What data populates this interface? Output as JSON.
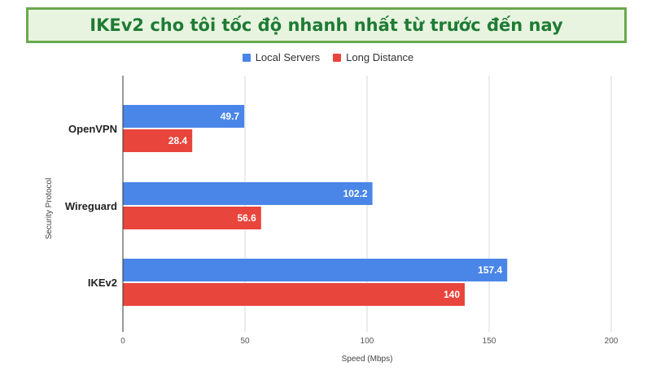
{
  "title": "IKEv2 cho tôi tốc độ nhanh nhất từ trước đến nay",
  "colors": {
    "title_text": "#1e7b35",
    "title_border": "#6aa84f",
    "title_bg": "#e8f4df",
    "local": "#4a86e8",
    "long": "#e8453c",
    "grid": "#d9d9d9",
    "axis": "#333333"
  },
  "chart_data": {
    "type": "bar",
    "orientation": "horizontal",
    "categories": [
      "OpenVPN",
      "Wireguard",
      "IKEv2"
    ],
    "series": [
      {
        "name": "Local Servers",
        "values": [
          49.7,
          102.2,
          157.4
        ]
      },
      {
        "name": "Long Distance",
        "values": [
          28.4,
          56.6,
          140
        ]
      }
    ],
    "data_labels": [
      [
        "49.7",
        "102.2",
        "157.4"
      ],
      [
        "28.4",
        "56.6",
        "140"
      ]
    ],
    "xlabel": "Speed (Mbps)",
    "ylabel": "Security Protocol",
    "xlim": [
      0,
      200
    ],
    "xticks": [
      "0",
      "50",
      "100",
      "150",
      "200"
    ],
    "grid": true,
    "legend_position": "top"
  }
}
